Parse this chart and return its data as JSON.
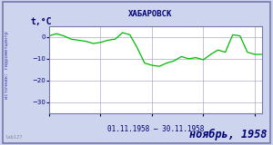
{
  "title": "ХАБАРОВСК",
  "ylabel": "t,°C",
  "xlabel": "01.11.1958 – 30.11.1958",
  "footer_left": "lab127",
  "footer_right": "ноябрь, 1958",
  "source_label": "источник: гидрометцентр",
  "ylim": [
    -35,
    5
  ],
  "yticks": [
    0,
    -10,
    -20,
    -30
  ],
  "line_color": "#00bb00",
  "bg_color": "#ccd4ee",
  "plot_bg_color": "#ffffff",
  "border_color": "#7777aa",
  "title_color": "#000077",
  "footer_right_color": "#000077",
  "label_color": "#000077",
  "source_color": "#4444aa",
  "grid_color": "#aaaacc",
  "temperatures": [
    0.5,
    1.5,
    0.5,
    -1.0,
    -1.5,
    -2.0,
    -3.0,
    -2.5,
    -1.5,
    -1.0,
    2.0,
    1.0,
    -5.0,
    -12.0,
    -13.0,
    -13.5,
    -12.0,
    -11.0,
    -9.0,
    -10.0,
    -9.5,
    -10.5,
    -8.0,
    -6.0,
    -7.0,
    1.0,
    0.5,
    -7.0,
    -8.0,
    -8.0
  ]
}
